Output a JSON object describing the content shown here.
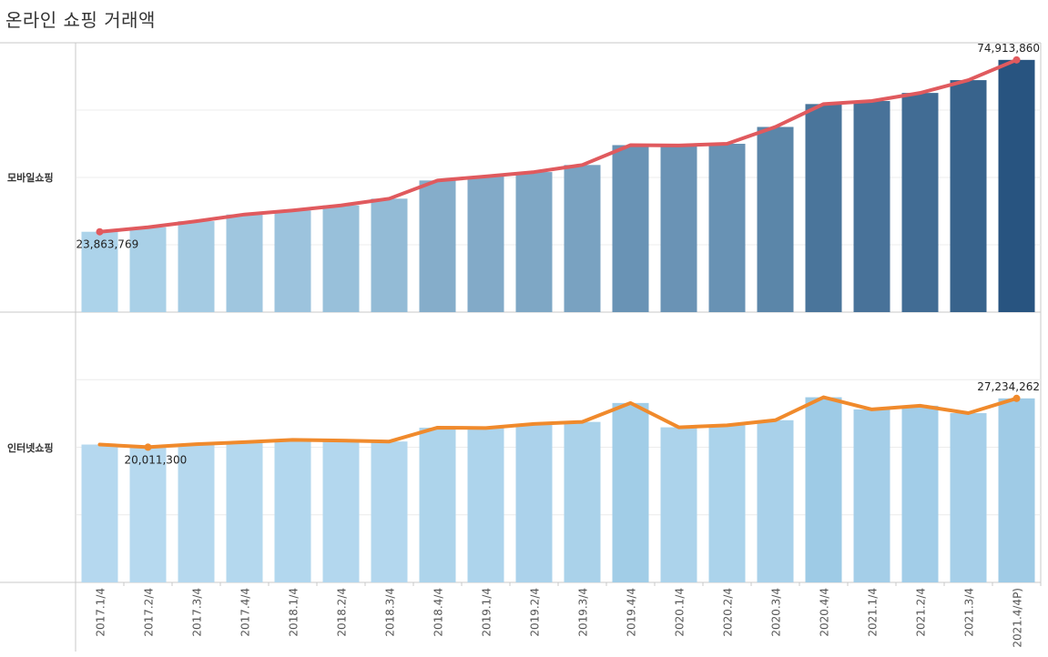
{
  "title": "온라인 쇼핑 거래액",
  "colors": {
    "mobile_line": "#e05a5e",
    "internet_line": "#f08a2c",
    "mobile_bar_light": "#acd3ea",
    "mobile_bar_dark": "#285480",
    "internet_bar_light": "#b6d9ef",
    "internet_bar_dark": "#9ecbe6",
    "grid": "#ececec",
    "axis": "#c8c8c8"
  },
  "chart_data": {
    "type": "bar",
    "title": "온라인 쇼핑 거래액",
    "categories": [
      "2017.1/4",
      "2017.2/4",
      "2017.3/4",
      "2017.4/4",
      "2018.1/4",
      "2018.2/4",
      "2018.3/4",
      "2018.4/4",
      "2019.1/4",
      "2019.2/4",
      "2019.3/4",
      "2019.4/4",
      "2020.1/4",
      "2020.2/4",
      "2020.3/4",
      "2020.4/4",
      "2021.1/4",
      "2021.2/4",
      "2021.3/4",
      "2021.4/4P)"
    ],
    "series": [
      {
        "name": "모바일쇼핑",
        "values": [
          23863769,
          25200000,
          27000000,
          29000000,
          30200000,
          31700000,
          33700000,
          39100000,
          40300000,
          41600000,
          43700000,
          49600000,
          49500000,
          50000000,
          55000000,
          61800000,
          62700000,
          65100000,
          68900000,
          74913860
        ],
        "ylim": [
          0,
          80000000
        ],
        "line_color_key": "mobile_line"
      },
      {
        "name": "인터넷쇼핑",
        "values": [
          20400000,
          20011300,
          20450000,
          20750000,
          21100000,
          21000000,
          20850000,
          22900000,
          22850000,
          23450000,
          23750000,
          26550000,
          22950000,
          23250000,
          24000000,
          27400000,
          25600000,
          26150000,
          25050000,
          27234262
        ],
        "ylim": [
          0,
          40000000
        ],
        "line_color_key": "internet_line"
      }
    ],
    "data_labels": [
      {
        "series": 0,
        "index": 0,
        "text": "23,863,769"
      },
      {
        "series": 0,
        "index": 19,
        "text": "74,913,860"
      },
      {
        "series": 1,
        "index": 1,
        "text": "20,011,300"
      },
      {
        "series": 1,
        "index": 19,
        "text": "27,234,262"
      }
    ],
    "xlabel": "",
    "ylabel": "",
    "grid": true,
    "legend": "none"
  }
}
